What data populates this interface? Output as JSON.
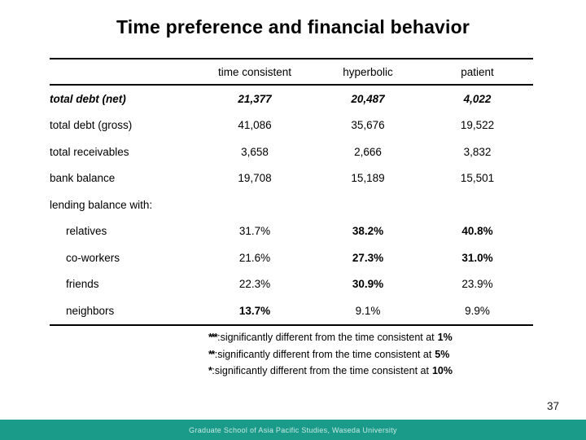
{
  "slide": {
    "title": "Time preference and financial behavior",
    "page_number": "37",
    "footer_text": "Graduate School of Asia Pacific Studies, Waseda University"
  },
  "colors": {
    "text": "#000000",
    "footer_bar_background": "#1a9b8a",
    "footer_bar_text": "#c9e9e2"
  },
  "table": {
    "columns": [
      "time consistent",
      "hyperbolic",
      "patient"
    ],
    "rows": [
      {
        "label": "total debt (net)",
        "indent": false,
        "label_style": "bold_italic",
        "values": [
          "21,377",
          "20,487",
          "4,022"
        ],
        "value_styles": [
          "bold_italic",
          "bold_italic",
          "bold_italic"
        ]
      },
      {
        "label": "total debt (gross)",
        "indent": false,
        "label_style": null,
        "values": [
          "41,086",
          "35,676",
          "19,522"
        ],
        "value_styles": [
          null,
          null,
          null
        ]
      },
      {
        "label": "total receivables",
        "indent": false,
        "label_style": null,
        "values": [
          "3,658",
          "2,666",
          "3,832"
        ],
        "value_styles": [
          null,
          null,
          null
        ]
      },
      {
        "label": "bank balance",
        "indent": false,
        "label_style": null,
        "values": [
          "19,708",
          "15,189",
          "15,501"
        ],
        "value_styles": [
          null,
          null,
          null
        ]
      },
      {
        "label": "lending balance with:",
        "indent": false,
        "label_style": null,
        "values": [
          "",
          "",
          ""
        ],
        "value_styles": [
          null,
          null,
          null
        ]
      },
      {
        "label": "relatives",
        "indent": true,
        "label_style": null,
        "values": [
          "31.7%",
          "38.2%",
          "40.8%"
        ],
        "value_styles": [
          null,
          "bold",
          "bold"
        ]
      },
      {
        "label": "co-workers",
        "indent": true,
        "label_style": null,
        "values": [
          "21.6%",
          "27.3%",
          "31.0%"
        ],
        "value_styles": [
          null,
          "bold",
          "bold"
        ]
      },
      {
        "label": "friends",
        "indent": true,
        "label_style": null,
        "values": [
          "22.3%",
          "30.9%",
          "23.9%"
        ],
        "value_styles": [
          null,
          "bold",
          null
        ]
      },
      {
        "label": "neighbors",
        "indent": true,
        "label_style": null,
        "values": [
          "13.7%",
          "9.1%",
          "9.9%"
        ],
        "value_styles": [
          "bold",
          null,
          null
        ]
      }
    ]
  },
  "footnotes": [
    {
      "stars": "***",
      "text": ":significantly different from the time consistent at",
      "level": "1%"
    },
    {
      "stars": "**",
      "text": ":significantly different from the time consistent at",
      "level": "5%"
    },
    {
      "stars": "*",
      "text": ":significantly different from the time consistent at",
      "level": "10%"
    }
  ]
}
